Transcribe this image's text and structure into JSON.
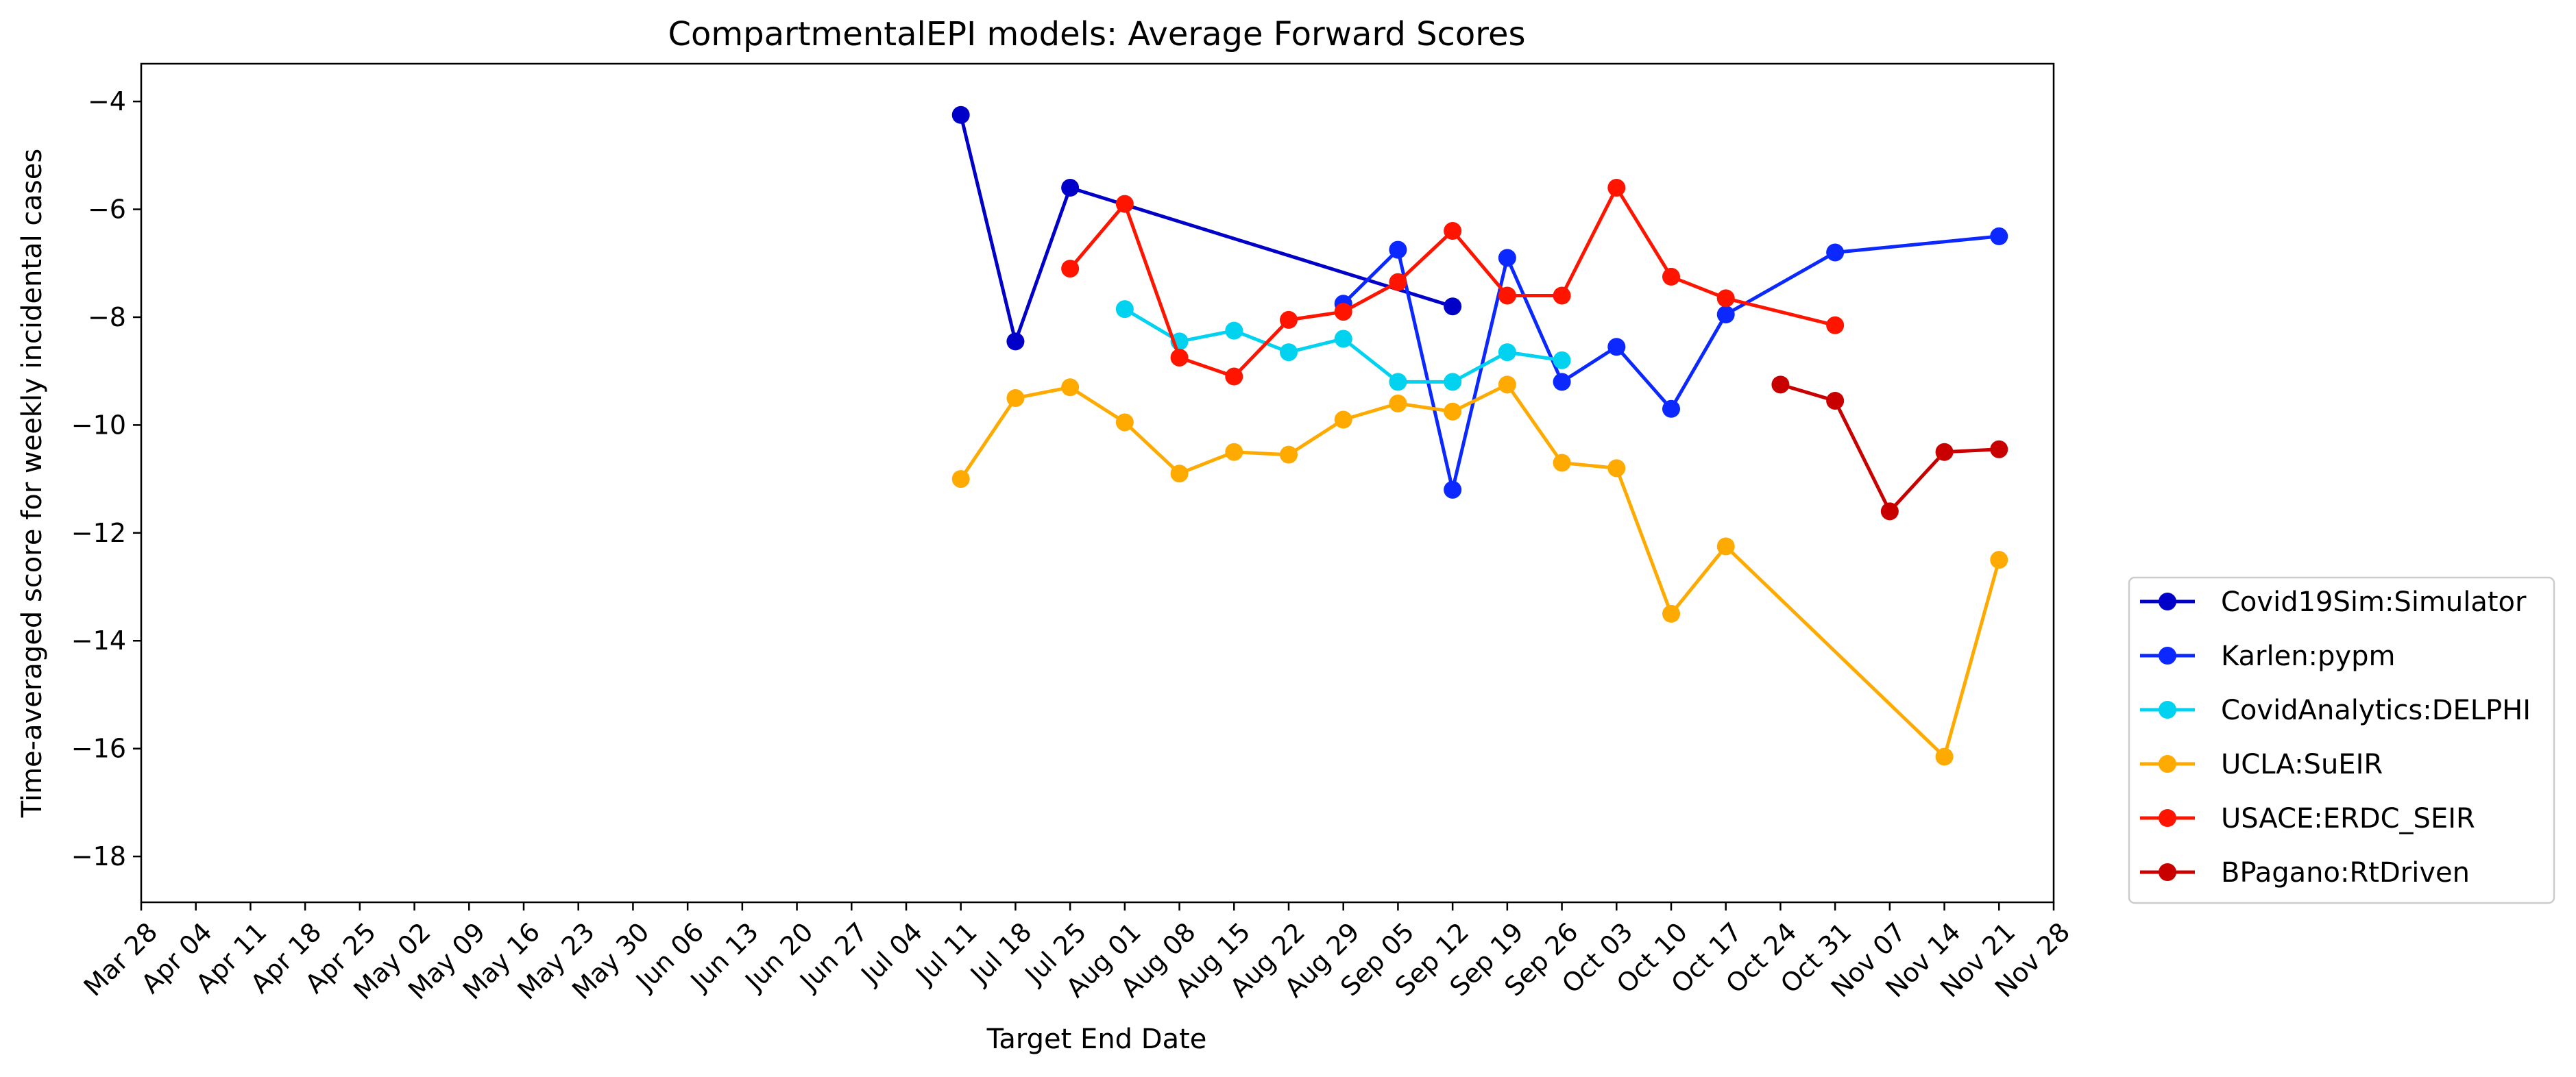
{
  "chart_data": {
    "type": "line",
    "title": "CompartmentalEPI models: Average Forward Scores",
    "xlabel": "Target End Date",
    "ylabel": "Time-averaged score for weekly incidental cases",
    "categories": [
      "Mar 28",
      "Apr 04",
      "Apr 11",
      "Apr 18",
      "Apr 25",
      "May 02",
      "May 09",
      "May 16",
      "May 23",
      "May 30",
      "Jun 06",
      "Jun 13",
      "Jun 20",
      "Jun 27",
      "Jul 04",
      "Jul 11",
      "Jul 18",
      "Jul 25",
      "Aug 01",
      "Aug 08",
      "Aug 15",
      "Aug 22",
      "Aug 29",
      "Sep 05",
      "Sep 12",
      "Sep 19",
      "Sep 26",
      "Oct 03",
      "Oct 10",
      "Oct 17",
      "Oct 24",
      "Oct 31",
      "Nov 07",
      "Nov 14",
      "Nov 21",
      "Nov 28"
    ],
    "yticks": [
      -4,
      -6,
      -8,
      -10,
      -12,
      -14,
      -16,
      -18
    ],
    "ylim": [
      -18.85,
      -3.3
    ],
    "grid": false,
    "legend_position": "outside-right",
    "series": [
      {
        "name": "Covid19Sim:Simulator",
        "color": "#0000c8",
        "x": [
          "Jul 11",
          "Jul 18",
          "Jul 25",
          "Sep 12"
        ],
        "y": [
          -4.25,
          -8.45,
          -5.6,
          -7.8
        ]
      },
      {
        "name": "Karlen:pypm",
        "color": "#0a28ff",
        "x": [
          "Aug 29",
          "Sep 05",
          "Sep 12",
          "Sep 19",
          "Sep 26",
          "Oct 03",
          "Oct 10",
          "Oct 17",
          "Oct 31",
          "Nov 21"
        ],
        "y": [
          -7.75,
          -6.75,
          -11.2,
          -6.9,
          -9.2,
          -8.55,
          -9.7,
          -7.95,
          -6.8,
          -6.5
        ]
      },
      {
        "name": "CovidAnalytics:DELPHI",
        "color": "#00d2f0",
        "x": [
          "Aug 01",
          "Aug 08",
          "Aug 15",
          "Aug 22",
          "Aug 29",
          "Sep 05",
          "Sep 12",
          "Sep 19",
          "Sep 26"
        ],
        "y": [
          -7.85,
          -8.45,
          -8.25,
          -8.65,
          -8.4,
          -9.2,
          -9.2,
          -8.65,
          -8.8
        ]
      },
      {
        "name": "UCLA:SuEIR",
        "color": "#ffaa00",
        "x": [
          "Jul 11",
          "Jul 18",
          "Jul 25",
          "Aug 01",
          "Aug 08",
          "Aug 15",
          "Aug 22",
          "Aug 29",
          "Sep 05",
          "Sep 12",
          "Sep 19",
          "Sep 26",
          "Oct 03",
          "Oct 10",
          "Oct 17",
          "Nov 14",
          "Nov 21"
        ],
        "y": [
          -11.0,
          -9.5,
          -9.3,
          -9.95,
          -10.9,
          -10.5,
          -10.55,
          -9.9,
          -9.6,
          -9.75,
          -9.25,
          -10.7,
          -10.8,
          -13.5,
          -12.25,
          -16.15,
          -12.5
        ]
      },
      {
        "name": "USACE:ERDC_SEIR",
        "color": "#ff1400",
        "x": [
          "Jul 25",
          "Aug 01",
          "Aug 08",
          "Aug 15",
          "Aug 22",
          "Aug 29",
          "Sep 05",
          "Sep 12",
          "Sep 19",
          "Sep 26",
          "Oct 03",
          "Oct 10",
          "Oct 17",
          "Oct 31"
        ],
        "y": [
          -7.1,
          -5.9,
          -8.75,
          -9.1,
          -8.05,
          -7.9,
          -7.35,
          -6.4,
          -7.6,
          -7.6,
          -5.6,
          -7.25,
          -7.65,
          -8.15
        ]
      },
      {
        "name": "BPagano:RtDriven",
        "color": "#c80000",
        "x": [
          "Oct 24",
          "Oct 31",
          "Nov 07",
          "Nov 14",
          "Nov 21"
        ],
        "y": [
          -9.25,
          -9.55,
          -11.6,
          -10.5,
          -10.45
        ]
      }
    ]
  }
}
